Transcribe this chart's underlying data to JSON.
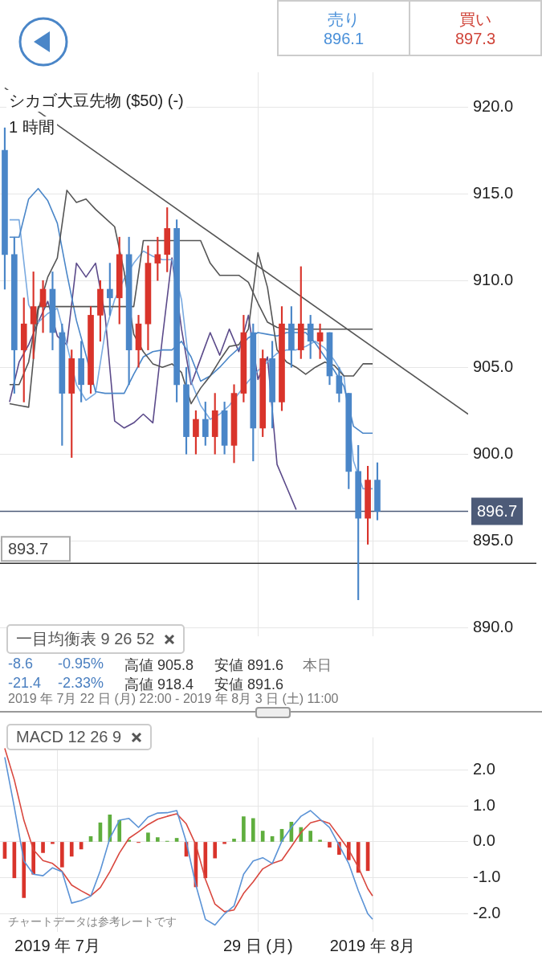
{
  "chart_data": [
    {
      "type": "candlestick",
      "title": "シカゴ大豆先物 ($50) (-)",
      "subtitle": "1 時間",
      "annotations": [
        "売り",
        "896.1",
        "買い",
        "897.3",
        "一目均衡表 9 26 52",
        "-8.6",
        "-0.95%",
        "高値 905.8",
        "安値 891.6",
        "本日",
        "-21.4",
        "-2.33%",
        "高値 918.4",
        "安値 891.6",
        "2019 年 7月 22 日 (月) 22:00 - 2019 年 8月 3 日 (土) 11:00"
      ],
      "x": [
        "2019-07-22T09:00",
        "2019-07-22T15:00",
        "2019-07-22T21:00",
        "2019-07-23T03:00",
        "2019-07-23T09:00",
        "2019-07-23T15:00",
        "2019-07-23T21:00",
        "2019-07-24T03:00",
        "2019-07-24T09:00",
        "2019-07-24T15:00",
        "2019-07-24T21:00",
        "2019-07-25T03:00",
        "2019-07-25T09:00",
        "2019-07-25T15:00",
        "2019-07-25T21:00",
        "2019-07-26T03:00",
        "2019-07-26T09:00",
        "2019-07-26T15:00",
        "2019-07-26T21:00",
        "2019-07-27T03:00",
        "2019-07-27T09:00",
        "2019-07-27T15:00",
        "2019-07-27T21:00",
        "2019-07-28T03:00",
        "2019-07-28T09:00",
        "2019-07-28T15:00",
        "2019-07-28T21:00",
        "2019-07-29T03:00",
        "2019-07-29T09:00",
        "2019-07-29T15:00",
        "2019-07-29T21:00",
        "2019-07-30T03:00",
        "2019-07-30T09:00",
        "2019-07-30T15:00",
        "2019-07-30T21:00",
        "2019-07-31T03:00",
        "2019-07-31T09:00",
        "2019-07-31T15:00",
        "2019-07-31T21:00",
        "2019-08-01T03:00"
      ],
      "ohlc": [
        [
          917.5,
          918.8,
          909.5,
          911.5
        ],
        [
          911.5,
          912.5,
          903.5,
          906
        ],
        [
          906,
          909,
          903,
          907.5
        ],
        [
          907.5,
          910.5,
          905.5,
          908.5
        ],
        [
          908.5,
          910,
          907,
          909.5
        ],
        [
          909.5,
          910.5,
          906,
          907
        ],
        [
          907,
          907.5,
          900.5,
          903.5
        ],
        [
          903.5,
          906,
          899.8,
          905.5
        ],
        [
          905.5,
          906.5,
          903,
          904
        ],
        [
          904,
          908.5,
          903.5,
          908
        ],
        [
          908,
          910,
          906.5,
          909.5
        ],
        [
          909.5,
          911,
          908,
          909
        ],
        [
          909,
          912.5,
          907.5,
          911.5
        ],
        [
          911.5,
          912.5,
          904,
          906
        ],
        [
          906,
          908,
          905,
          907.5
        ],
        [
          907.5,
          912,
          906,
          911
        ],
        [
          911,
          912.5,
          910,
          911.5
        ],
        [
          911.5,
          914.2,
          910.5,
          913
        ],
        [
          913,
          913.5,
          903,
          904
        ],
        [
          904,
          905,
          900,
          901
        ],
        [
          901,
          902.5,
          900,
          902
        ],
        [
          902,
          903,
          900.5,
          901
        ],
        [
          901,
          903.5,
          900,
          902.5
        ],
        [
          902.5,
          903,
          900,
          900.5
        ],
        [
          900.5,
          904,
          899.5,
          903.5
        ],
        [
          903.5,
          908,
          903,
          907
        ],
        [
          907,
          907.5,
          899.6,
          901.5
        ],
        [
          901.5,
          906,
          901,
          905.5
        ],
        [
          905.5,
          906.5,
          901.5,
          903
        ],
        [
          903,
          908.5,
          902.5,
          907.5
        ],
        [
          907.5,
          908.5,
          905,
          906
        ],
        [
          906,
          910.8,
          905.5,
          907.5
        ],
        [
          907.5,
          908,
          905.5,
          906.5
        ],
        [
          906.5,
          907.5,
          905.5,
          907
        ],
        [
          907,
          907,
          904,
          904.5
        ],
        [
          904.5,
          905,
          903,
          903.5
        ],
        [
          903.5,
          903.5,
          898,
          899
        ],
        [
          899,
          900.5,
          891.6,
          896.3
        ],
        [
          896.3,
          899.3,
          894.8,
          898.5
        ],
        [
          898.5,
          899.5,
          896.2,
          896.7
        ]
      ],
      "colors": [
        "#4a86c8",
        "#4a86c8",
        "#d9342b",
        "#d9342b",
        "#d9342b",
        "#4a86c8",
        "#4a86c8",
        "#d9342b",
        "#4a86c8",
        "#d9342b",
        "#d9342b",
        "#4a86c8",
        "#d9342b",
        "#4a86c8",
        "#d9342b",
        "#d9342b",
        "#d9342b",
        "#d9342b",
        "#4a86c8",
        "#4a86c8",
        "#d9342b",
        "#4a86c8",
        "#d9342b",
        "#4a86c8",
        "#d9342b",
        "#d9342b",
        "#4a86c8",
        "#d9342b",
        "#4a86c8",
        "#d9342b",
        "#4a86c8",
        "#d9342b",
        "#4a86c8",
        "#d9342b",
        "#4a86c8",
        "#4a86c8",
        "#4a86c8",
        "#4a86c8",
        "#d9342b",
        "#4a86c8"
      ],
      "series": [
        {
          "type": "line",
          "color": "#555555",
          "x": [
            "2019-07-22T12:00",
            "2019-07-22T18:00",
            "2019-07-23T00:00",
            "2019-07-23T06:00",
            "2019-07-23T12:00",
            "2019-07-23T18:00",
            "2019-07-24T00:00",
            "2019-07-24T06:00",
            "2019-07-24T12:00",
            "2019-07-24T18:00",
            "2019-07-25T00:00",
            "2019-07-25T06:00",
            "2019-07-25T12:00",
            "2019-07-25T18:00",
            "2019-07-26T00:00",
            "2019-07-26T06:00",
            "2019-07-26T12:00",
            "2019-07-26T18:00",
            "2019-07-27T00:00",
            "2019-07-27T06:00",
            "2019-07-27T12:00",
            "2019-07-27T18:00",
            "2019-07-28T00:00",
            "2019-07-28T06:00",
            "2019-07-28T12:00",
            "2019-07-28T18:00",
            "2019-07-29T00:00",
            "2019-07-29T06:00",
            "2019-07-29T12:00",
            "2019-07-29T18:00",
            "2019-07-30T00:00",
            "2019-07-30T06:00",
            "2019-07-30T12:00",
            "2019-07-30T18:00",
            "2019-07-31T00:00",
            "2019-07-31T06:00",
            "2019-07-31T12:00",
            "2019-07-31T18:00",
            "2019-08-01T00:00"
          ],
          "values": [
            902.9,
            902.8,
            902.7,
            908.3,
            910.2,
            911.3,
            915.2,
            914.5,
            914.7,
            914.1,
            913.6,
            913.1,
            910.5,
            906.9,
            905.9,
            905.2,
            905,
            905.2,
            904.7,
            902.9,
            903.8,
            904.5,
            905.4,
            906.2,
            906.3,
            907.2,
            911.6,
            909.6,
            906,
            905.3,
            905,
            904.6,
            905,
            905.3,
            905.1,
            904.5,
            904.5,
            905.2,
            905.2
          ]
        },
        {
          "type": "line",
          "color": "#555555",
          "x": [
            "2019-07-22T12:00",
            "2019-07-22T18:00",
            "2019-07-23T00:00",
            "2019-07-23T06:00",
            "2019-07-23T12:00",
            "2019-07-23T18:00",
            "2019-07-24T00:00",
            "2019-07-24T06:00",
            "2019-07-24T12:00",
            "2019-07-24T18:00",
            "2019-07-25T00:00",
            "2019-07-25T06:00",
            "2019-07-25T12:00",
            "2019-07-25T18:00",
            "2019-07-26T00:00",
            "2019-07-26T06:00",
            "2019-07-26T12:00",
            "2019-07-26T18:00",
            "2019-07-27T00:00",
            "2019-07-27T06:00",
            "2019-07-27T12:00",
            "2019-07-27T18:00",
            "2019-07-28T00:00",
            "2019-07-28T06:00",
            "2019-07-28T12:00",
            "2019-07-28T18:00",
            "2019-07-29T00:00",
            "2019-07-29T06:00",
            "2019-07-29T12:00",
            "2019-07-29T18:00",
            "2019-07-30T00:00",
            "2019-07-30T06:00",
            "2019-07-30T12:00",
            "2019-07-30T18:00",
            "2019-07-31T00:00",
            "2019-07-31T06:00",
            "2019-07-31T12:00",
            "2019-07-31T18:00",
            "2019-08-01T00:00"
          ],
          "values": [
            904,
            904,
            905.3,
            908.5,
            908.5,
            908.5,
            908.5,
            908.5,
            908.5,
            908.5,
            908.5,
            908.5,
            908.5,
            908.5,
            912.3,
            912.3,
            912.3,
            912.3,
            912.3,
            912.3,
            912.3,
            911,
            910.3,
            910.3,
            910.3,
            909.9,
            908.7,
            907.6,
            907.3,
            907.2,
            907.2,
            907.2,
            907.2,
            907.2,
            907.2,
            907.2,
            907.2,
            907.2,
            907.2
          ]
        },
        {
          "type": "line",
          "color": "#4a86c8",
          "x": [
            "2019-07-22T12:00",
            "2019-07-22T18:00",
            "2019-07-23T00:00",
            "2019-07-23T06:00",
            "2019-07-23T12:00",
            "2019-07-23T18:00",
            "2019-07-24T00:00",
            "2019-07-24T06:00",
            "2019-07-24T12:00",
            "2019-07-24T18:00",
            "2019-07-25T00:00",
            "2019-07-25T06:00",
            "2019-07-25T12:00",
            "2019-07-25T18:00",
            "2019-07-26T00:00",
            "2019-07-26T06:00",
            "2019-07-26T12:00",
            "2019-07-26T18:00",
            "2019-07-27T00:00",
            "2019-07-27T06:00",
            "2019-07-27T12:00",
            "2019-07-27T18:00",
            "2019-07-28T00:00",
            "2019-07-28T06:00",
            "2019-07-28T12:00",
            "2019-07-28T18:00",
            "2019-07-29T00:00",
            "2019-07-29T06:00",
            "2019-07-29T12:00",
            "2019-07-29T18:00",
            "2019-07-30T00:00",
            "2019-07-30T06:00",
            "2019-07-30T12:00",
            "2019-07-30T18:00",
            "2019-07-31T00:00",
            "2019-07-31T06:00",
            "2019-07-31T12:00",
            "2019-07-31T18:00",
            "2019-08-01T00:00"
          ],
          "values": [
            912.5,
            912.5,
            914.7,
            915.3,
            914.6,
            913.3,
            910.4,
            907.7,
            905.7,
            903.6,
            903.5,
            903.5,
            903.5,
            904.6,
            905.6,
            905.9,
            906,
            906,
            906.5,
            905.6,
            904.2,
            904.5,
            905,
            905.6,
            906.1,
            906.7,
            907,
            906.9,
            906.8,
            907,
            907,
            907,
            906.4,
            905.6,
            904.8,
            903.9,
            901.6,
            901.2,
            901.2
          ]
        },
        {
          "type": "line",
          "color": "#7aaae0",
          "x": [
            "2019-07-22T12:00",
            "2019-07-22T18:00",
            "2019-07-23T00:00",
            "2019-07-23T06:00",
            "2019-07-23T12:00",
            "2019-07-23T18:00",
            "2019-07-24T00:00",
            "2019-07-24T06:00",
            "2019-07-24T12:00",
            "2019-07-24T18:00",
            "2019-07-25T00:00",
            "2019-07-25T06:00",
            "2019-07-25T12:00",
            "2019-07-25T18:00",
            "2019-07-26T00:00",
            "2019-07-26T06:00",
            "2019-07-26T12:00",
            "2019-07-26T18:00",
            "2019-07-27T00:00",
            "2019-07-27T06:00",
            "2019-07-27T12:00",
            "2019-07-27T18:00",
            "2019-07-28T00:00",
            "2019-07-28T06:00",
            "2019-07-28T12:00",
            "2019-07-28T18:00",
            "2019-07-29T00:00",
            "2019-07-29T06:00",
            "2019-07-29T12:00",
            "2019-07-29T18:00",
            "2019-07-30T00:00",
            "2019-07-30T06:00",
            "2019-07-30T12:00",
            "2019-07-30T18:00",
            "2019-07-31T00:00",
            "2019-07-31T06:00",
            "2019-07-31T12:00",
            "2019-07-31T18:00",
            "2019-08-01T00:00"
          ],
          "values": [
            913.5,
            913.5,
            908.6,
            907.6,
            908.1,
            908.4,
            906.3,
            904,
            903.1,
            903.5,
            907,
            908.9,
            910.1,
            911,
            911.7,
            911.4,
            911.2,
            911.2,
            908.9,
            904.2,
            902.8,
            902,
            902.3,
            902.8,
            903.5,
            904.2,
            904.8,
            905.3,
            905.8,
            906,
            906,
            906.2,
            906.5,
            906.1,
            905.4,
            904.5,
            899.6,
            898,
            898
          ]
        },
        {
          "type": "line",
          "color": "#5b4a8a",
          "x": [
            "2019-07-22T12:00",
            "2019-07-22T18:00",
            "2019-07-23T00:00",
            "2019-07-23T06:00",
            "2019-07-23T12:00",
            "2019-07-23T18:00",
            "2019-07-24T00:00",
            "2019-07-24T06:00",
            "2019-07-24T12:00",
            "2019-07-24T18:00",
            "2019-07-25T00:00",
            "2019-07-25T06:00",
            "2019-07-25T12:00",
            "2019-07-25T18:00",
            "2019-07-26T00:00",
            "2019-07-26T06:00",
            "2019-07-26T12:00",
            "2019-07-26T18:00",
            "2019-07-27T00:00",
            "2019-07-27T06:00",
            "2019-07-27T12:00",
            "2019-07-27T18:00",
            "2019-07-28T00:00",
            "2019-07-28T06:00",
            "2019-07-28T12:00",
            "2019-07-28T18:00",
            "2019-07-29T00:00",
            "2019-07-29T06:00",
            "2019-07-29T12:00",
            "2019-07-29T18:00",
            "2019-07-30T00:00"
          ],
          "values": [
            903,
            905.3,
            906.3,
            907.6,
            908.8,
            906.8,
            906.3,
            911,
            910.2,
            911,
            908,
            901.9,
            901.5,
            901.8,
            902.3,
            901.8,
            906.7,
            911.3,
            907.2,
            904,
            905.5,
            907,
            905.7,
            907.2,
            905.9,
            908,
            904.3,
            905.6,
            899.4,
            898.1,
            896.8
          ]
        },
        {
          "type": "line",
          "color": "#555555",
          "x": [
            "2019-07-22T09:00",
            "2019-08-03T12:00"
          ],
          "values": [
            921.1,
            902.3
          ]
        }
      ],
      "ref_lines": [
        {
          "axis": "y",
          "value": 896.7,
          "label": "896.7",
          "color": "#4d5b78"
        },
        {
          "axis": "y",
          "value": 893.7,
          "label": "893.7",
          "color": "#333333"
        }
      ],
      "xlim": [
        "2019-07-22T06:00",
        "2019-08-03T12:00"
      ],
      "xticks": [
        {
          "value": "2019-07-29",
          "label": null
        },
        {
          "value": "2019-08-01",
          "label": null
        }
      ],
      "ylim": [
        889.5,
        922
      ],
      "yticks": [
        {
          "value": 890,
          "label": "890.0"
        },
        {
          "value": 895,
          "label": "895.0"
        },
        {
          "value": 900,
          "label": "900.0"
        },
        {
          "value": 905,
          "label": "905.0"
        },
        {
          "value": 910,
          "label": "910.0"
        },
        {
          "value": 915,
          "label": "915.0"
        },
        {
          "value": 920,
          "label": "920.0"
        }
      ],
      "tick_labels": "y",
      "grid": true
    },
    {
      "type": "bar",
      "title": "MACD 12 26 9",
      "annotations": [
        "チャートデータは参考レートです"
      ],
      "series": [
        {
          "type": "bar",
          "x": [
            "2019-07-22T09:00",
            "2019-07-22T15:00",
            "2019-07-22T21:00",
            "2019-07-23T03:00",
            "2019-07-23T09:00",
            "2019-07-23T15:00",
            "2019-07-23T21:00",
            "2019-07-24T03:00",
            "2019-07-24T09:00",
            "2019-07-24T15:00",
            "2019-07-24T21:00",
            "2019-07-25T03:00",
            "2019-07-25T09:00",
            "2019-07-25T15:00",
            "2019-07-25T21:00",
            "2019-07-26T03:00",
            "2019-07-26T09:00",
            "2019-07-26T15:00",
            "2019-07-26T21:00",
            "2019-07-27T03:00",
            "2019-07-27T09:00",
            "2019-07-27T15:00",
            "2019-07-27T21:00",
            "2019-07-28T03:00",
            "2019-07-28T09:00",
            "2019-07-28T15:00",
            "2019-07-28T21:00",
            "2019-07-29T03:00",
            "2019-07-29T09:00",
            "2019-07-29T15:00",
            "2019-07-29T21:00",
            "2019-07-30T03:00",
            "2019-07-30T09:00",
            "2019-07-30T15:00",
            "2019-07-30T21:00",
            "2019-07-31T03:00",
            "2019-07-31T09:00",
            "2019-07-31T15:00",
            "2019-07-31T21:00"
          ],
          "values": [
            -0.46,
            -1.0,
            -1.55,
            -0.9,
            -0.3,
            -0.05,
            -0.7,
            -0.4,
            -0.2,
            0.15,
            0.53,
            0.75,
            0.6,
            0.05,
            -0.02,
            0.25,
            0.12,
            0.02,
            0.1,
            -0.4,
            -1.25,
            -1.0,
            -0.45,
            -0.05,
            0.08,
            0.7,
            0.65,
            0.3,
            0.15,
            0.35,
            0.55,
            0.4,
            0.3,
            0.05,
            -0.15,
            -0.35,
            -0.5,
            -0.85,
            -0.8
          ],
          "colors": [
            "#d9342b",
            "#d9342b",
            "#d9342b",
            "#d9342b",
            "#d9342b",
            "#d9342b",
            "#d9342b",
            "#d9342b",
            "#d9342b",
            "#5fae3e",
            "#5fae3e",
            "#5fae3e",
            "#5fae3e",
            "#5fae3e",
            "#d9342b",
            "#5fae3e",
            "#5fae3e",
            "#5fae3e",
            "#5fae3e",
            "#d9342b",
            "#d9342b",
            "#d9342b",
            "#d9342b",
            "#d9342b",
            "#5fae3e",
            "#5fae3e",
            "#5fae3e",
            "#5fae3e",
            "#5fae3e",
            "#5fae3e",
            "#5fae3e",
            "#5fae3e",
            "#5fae3e",
            "#5fae3e",
            "#d9342b",
            "#d9342b",
            "#d9342b",
            "#d9342b",
            "#d9342b"
          ]
        },
        {
          "type": "line",
          "color": "#5b93d6",
          "x": [
            "2019-07-22T09:00",
            "2019-07-22T15:00",
            "2019-07-22T21:00",
            "2019-07-23T03:00",
            "2019-07-23T09:00",
            "2019-07-23T15:00",
            "2019-07-23T21:00",
            "2019-07-24T03:00",
            "2019-07-24T09:00",
            "2019-07-24T15:00",
            "2019-07-24T21:00",
            "2019-07-25T03:00",
            "2019-07-25T09:00",
            "2019-07-25T15:00",
            "2019-07-25T21:00",
            "2019-07-26T03:00",
            "2019-07-26T09:00",
            "2019-07-26T15:00",
            "2019-07-26T21:00",
            "2019-07-27T03:00",
            "2019-07-27T09:00",
            "2019-07-27T15:00",
            "2019-07-27T21:00",
            "2019-07-28T03:00",
            "2019-07-28T09:00",
            "2019-07-28T15:00",
            "2019-07-28T21:00",
            "2019-07-29T03:00",
            "2019-07-29T09:00",
            "2019-07-29T15:00",
            "2019-07-29T21:00",
            "2019-07-30T03:00",
            "2019-07-30T09:00",
            "2019-07-30T15:00",
            "2019-07-30T21:00",
            "2019-07-31T03:00",
            "2019-07-31T09:00",
            "2019-07-31T15:00",
            "2019-07-31T21:00",
            "2019-08-01T00:00"
          ],
          "values": [
            2.35,
            0.96,
            -0.53,
            -0.9,
            -0.94,
            -0.72,
            -0.83,
            -1.7,
            -1.63,
            -1.51,
            -0.8,
            0.1,
            0.6,
            0.65,
            0.4,
            0.69,
            0.8,
            0.81,
            0.87,
            0.0,
            -1.2,
            -2.15,
            -2.31,
            -2.0,
            -1.78,
            -0.9,
            -0.53,
            -0.44,
            -0.6,
            0.02,
            0.4,
            0.71,
            0.87,
            0.63,
            0.4,
            -0.1,
            -0.6,
            -1.35,
            -2.0,
            -2.15
          ]
        },
        {
          "type": "line",
          "color": "#d9473e",
          "x": [
            "2019-07-22T09:00",
            "2019-07-22T15:00",
            "2019-07-22T21:00",
            "2019-07-23T03:00",
            "2019-07-23T09:00",
            "2019-07-23T15:00",
            "2019-07-23T21:00",
            "2019-07-24T03:00",
            "2019-07-24T09:00",
            "2019-07-24T15:00",
            "2019-07-24T21:00",
            "2019-07-25T03:00",
            "2019-07-25T09:00",
            "2019-07-25T15:00",
            "2019-07-25T21:00",
            "2019-07-26T03:00",
            "2019-07-26T09:00",
            "2019-07-26T15:00",
            "2019-07-26T21:00",
            "2019-07-27T03:00",
            "2019-07-27T09:00",
            "2019-07-27T15:00",
            "2019-07-27T21:00",
            "2019-07-28T03:00",
            "2019-07-28T09:00",
            "2019-07-28T15:00",
            "2019-07-28T21:00",
            "2019-07-29T03:00",
            "2019-07-29T09:00",
            "2019-07-29T15:00",
            "2019-07-29T21:00",
            "2019-07-30T03:00",
            "2019-07-30T09:00",
            "2019-07-30T15:00",
            "2019-07-30T21:00",
            "2019-07-31T03:00",
            "2019-07-31T09:00",
            "2019-07-31T15:00",
            "2019-07-31T21:00",
            "2019-08-01T00:00"
          ],
          "values": [
            2.6,
            1.72,
            0.6,
            -0.22,
            -0.52,
            -0.6,
            -0.82,
            -1.2,
            -1.36,
            -1.5,
            -1.27,
            -0.83,
            -0.31,
            0.1,
            0.28,
            0.48,
            0.63,
            0.71,
            0.78,
            0.5,
            -0.08,
            -1.04,
            -1.73,
            -1.94,
            -1.89,
            -1.43,
            -1.11,
            -0.75,
            -0.6,
            -0.51,
            -0.13,
            0.26,
            0.53,
            0.6,
            0.51,
            0.15,
            -0.22,
            -0.7,
            -1.3,
            -1.5
          ]
        }
      ],
      "xlim": [
        "2019-07-22T06:00",
        "2019-08-03T12:00"
      ],
      "xticks": [
        {
          "value": "2019-07-23T18:00",
          "label": "2019 年 7月"
        },
        {
          "value": "2019-07-29",
          "label": "29 日 (月)"
        },
        {
          "value": "2019-08-01",
          "label": "2019 年 8月"
        }
      ],
      "ylim": [
        -2.5,
        2.9
      ],
      "yticks": [
        {
          "value": -2,
          "label": "-2.0"
        },
        {
          "value": -1,
          "label": "-1.0"
        },
        {
          "value": 0,
          "label": "0.0"
        },
        {
          "value": 1,
          "label": "1.0"
        },
        {
          "value": 2,
          "label": "2.0"
        }
      ],
      "grid": true
    }
  ]
}
